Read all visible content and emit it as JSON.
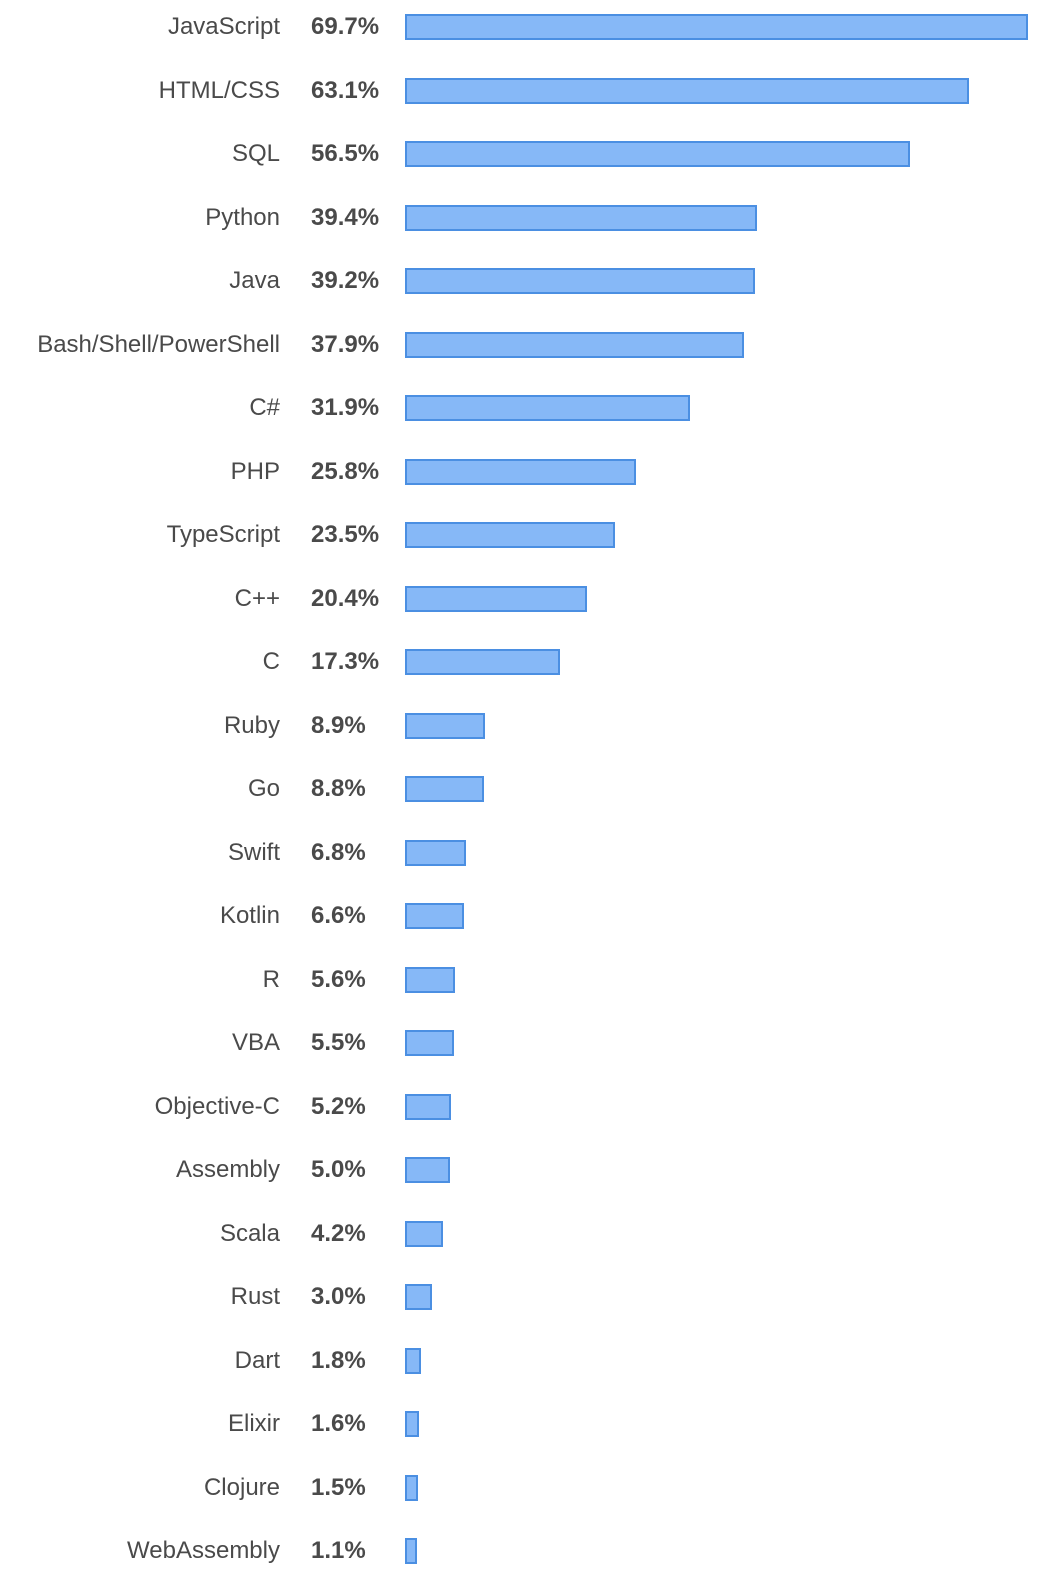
{
  "chart_data": {
    "type": "bar",
    "orientation": "horizontal",
    "categories": [
      "JavaScript",
      "HTML/CSS",
      "SQL",
      "Python",
      "Java",
      "Bash/Shell/PowerShell",
      "C#",
      "PHP",
      "TypeScript",
      "C++",
      "C",
      "Ruby",
      "Go",
      "Swift",
      "Kotlin",
      "R",
      "VBA",
      "Objective-C",
      "Assembly",
      "Scala",
      "Rust",
      "Dart",
      "Elixir",
      "Clojure",
      "WebAssembly"
    ],
    "values": [
      69.7,
      63.1,
      56.5,
      39.4,
      39.2,
      37.9,
      31.9,
      25.8,
      23.5,
      20.4,
      17.3,
      8.9,
      8.8,
      6.8,
      6.6,
      5.6,
      5.5,
      5.2,
      5.0,
      4.2,
      3.0,
      1.8,
      1.6,
      1.5,
      1.1
    ],
    "value_labels": [
      "69.7%",
      "63.1%",
      "56.5%",
      "39.4%",
      "39.2%",
      "37.9%",
      "31.9%",
      "25.8%",
      "23.5%",
      "20.4%",
      "17.3%",
      "8.9%",
      "8.8%",
      "6.8%",
      "6.6%",
      "5.6%",
      "5.5%",
      "5.2%",
      "5.0%",
      "4.2%",
      "3.0%",
      "1.8%",
      "1.6%",
      "1.5%",
      "1.1%"
    ],
    "unit": "%",
    "xlim": [
      0,
      69.7
    ],
    "grid": false,
    "legend": "none",
    "colors": {
      "bar_fill": "#86b8f7",
      "bar_border": "#4b8fe2",
      "text": "#4a4a4a"
    }
  }
}
